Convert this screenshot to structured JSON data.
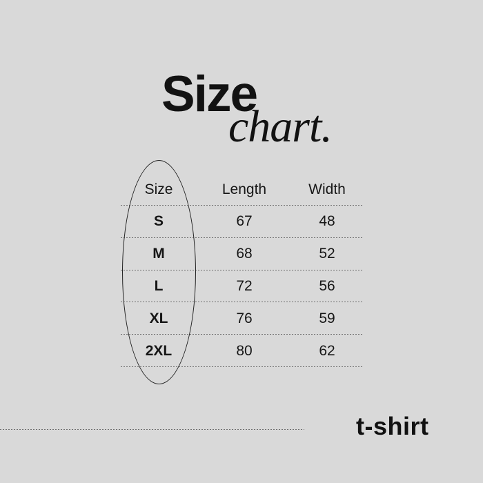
{
  "canvas": {
    "background_color": "#d9d9d9",
    "ink_color": "#151515",
    "divider_color": "#6e6e6e"
  },
  "title": {
    "word1": "Size",
    "word2": "chart."
  },
  "table": {
    "headers": [
      "Size",
      "Length",
      "Width"
    ],
    "rows": [
      {
        "size": "S",
        "length": "67",
        "width": "48"
      },
      {
        "size": "M",
        "length": "68",
        "width": "52"
      },
      {
        "size": "L",
        "length": "72",
        "width": "56"
      },
      {
        "size": "XL",
        "length": "76",
        "width": "59"
      },
      {
        "size": "2XL",
        "length": "80",
        "width": "62"
      }
    ]
  },
  "footer": {
    "product_label": "t-shirt"
  },
  "chart_data": {
    "type": "table",
    "title": "Size chart.",
    "columns": [
      "Size",
      "Length",
      "Width"
    ],
    "rows": [
      [
        "S",
        67,
        48
      ],
      [
        "M",
        68,
        52
      ],
      [
        "L",
        72,
        56
      ],
      [
        "XL",
        76,
        59
      ],
      [
        "2XL",
        80,
        62
      ]
    ],
    "annotations": [
      "ellipse drawn around Size column",
      "t-shirt label bottom-right"
    ]
  }
}
